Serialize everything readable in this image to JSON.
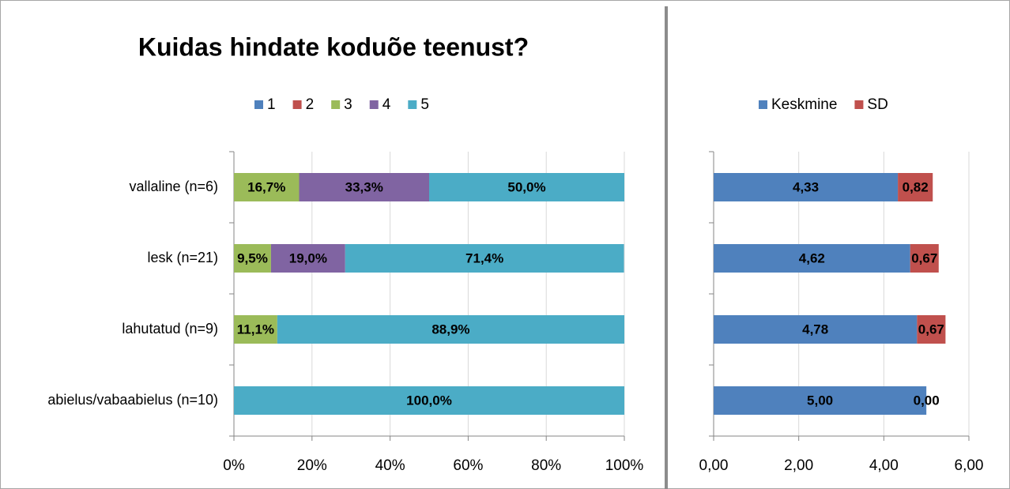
{
  "chart_data": [
    {
      "type": "stacked_bar_horizontal",
      "title": "Kuidas hindate koduõe teenust?",
      "categories": [
        "vallaline (n=6)",
        "lesk (n=21)",
        "lahutatud (n=9)",
        "abielus/vabaabielus (n=10)"
      ],
      "series": [
        {
          "name": "1",
          "color": "#4f81bd",
          "values": [
            0,
            0,
            0,
            0
          ],
          "value_labels": [
            null,
            null,
            null,
            null
          ]
        },
        {
          "name": "2",
          "color": "#c0504d",
          "values": [
            0,
            0,
            0,
            0
          ],
          "value_labels": [
            null,
            null,
            null,
            null
          ]
        },
        {
          "name": "3",
          "color": "#9bbb59",
          "values": [
            16.7,
            9.5,
            11.1,
            0
          ],
          "value_labels": [
            "16,7%",
            "9,5%",
            "11,1%",
            null
          ]
        },
        {
          "name": "4",
          "color": "#8064a2",
          "values": [
            33.3,
            19.0,
            0,
            0
          ],
          "value_labels": [
            "33,3%",
            "19,0%",
            null,
            null
          ]
        },
        {
          "name": "5",
          "color": "#4bacc6",
          "values": [
            50.0,
            71.4,
            88.9,
            100.0
          ],
          "value_labels": [
            "50,0%",
            "71,4%",
            "88,9%",
            "100,0%"
          ]
        }
      ],
      "xlim": [
        0,
        100
      ],
      "xticks": [
        {
          "value": 0,
          "label": "0%"
        },
        {
          "value": 20,
          "label": "20%"
        },
        {
          "value": 40,
          "label": "40%"
        },
        {
          "value": 60,
          "label": "60%"
        },
        {
          "value": 80,
          "label": "80%"
        },
        {
          "value": 100,
          "label": "100%"
        }
      ],
      "grid": true,
      "legend": "top"
    },
    {
      "type": "stacked_bar_horizontal",
      "series": [
        {
          "name": "Keskmine",
          "color": "#4f81bd",
          "values": [
            4.33,
            4.62,
            4.78,
            5.0
          ],
          "value_labels": [
            "4,33",
            "4,62",
            "4,78",
            "5,00"
          ]
        },
        {
          "name": "SD",
          "color": "#c0504d",
          "values": [
            0.82,
            0.67,
            0.67,
            0.0
          ],
          "value_labels": [
            "0,82",
            "0,67",
            "0,67",
            "0,00"
          ]
        }
      ],
      "xlim": [
        0,
        6
      ],
      "xticks": [
        {
          "value": 0,
          "label": "0,00"
        },
        {
          "value": 2,
          "label": "2,00"
        },
        {
          "value": 4,
          "label": "4,00"
        },
        {
          "value": 6,
          "label": "6,00"
        }
      ],
      "grid": true,
      "legend": "top"
    }
  ]
}
